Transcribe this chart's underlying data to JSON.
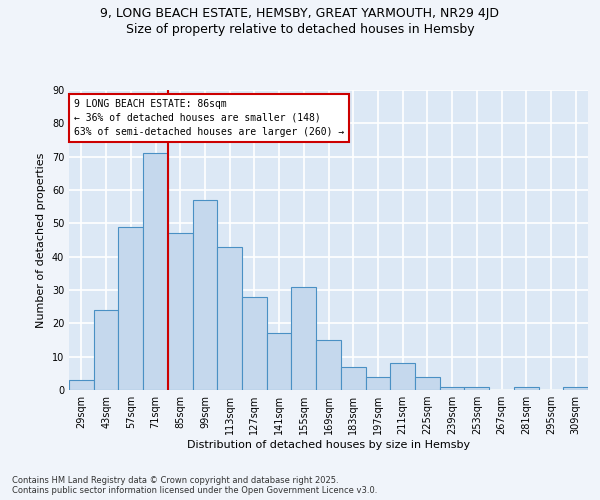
{
  "title_line1": "9, LONG BEACH ESTATE, HEMSBY, GREAT YARMOUTH, NR29 4JD",
  "title_line2": "Size of property relative to detached houses in Hemsby",
  "xlabel": "Distribution of detached houses by size in Hemsby",
  "ylabel": "Number of detached properties",
  "categories": [
    "29sqm",
    "43sqm",
    "57sqm",
    "71sqm",
    "85sqm",
    "99sqm",
    "113sqm",
    "127sqm",
    "141sqm",
    "155sqm",
    "169sqm",
    "183sqm",
    "197sqm",
    "211sqm",
    "225sqm",
    "239sqm",
    "253sqm",
    "267sqm",
    "281sqm",
    "295sqm",
    "309sqm"
  ],
  "values": [
    3,
    24,
    49,
    71,
    47,
    57,
    43,
    28,
    17,
    31,
    15,
    7,
    4,
    8,
    4,
    1,
    1,
    0,
    1,
    0,
    1
  ],
  "bar_color": "#c5d8ed",
  "bar_edge_color": "#4a90c4",
  "annotation_text": "9 LONG BEACH ESTATE: 86sqm\n← 36% of detached houses are smaller (148)\n63% of semi-detached houses are larger (260) →",
  "annotation_box_color": "#ffffff",
  "annotation_box_edge_color": "#cc0000",
  "red_line_color": "#cc0000",
  "background_color": "#dce8f5",
  "grid_color": "#ffffff",
  "ylim": [
    0,
    90
  ],
  "yticks": [
    0,
    10,
    20,
    30,
    40,
    50,
    60,
    70,
    80,
    90
  ],
  "footer_text": "Contains HM Land Registry data © Crown copyright and database right 2025.\nContains public sector information licensed under the Open Government Licence v3.0.",
  "title_fontsize": 9,
  "subtitle_fontsize": 9,
  "axis_label_fontsize": 8,
  "tick_fontsize": 7
}
